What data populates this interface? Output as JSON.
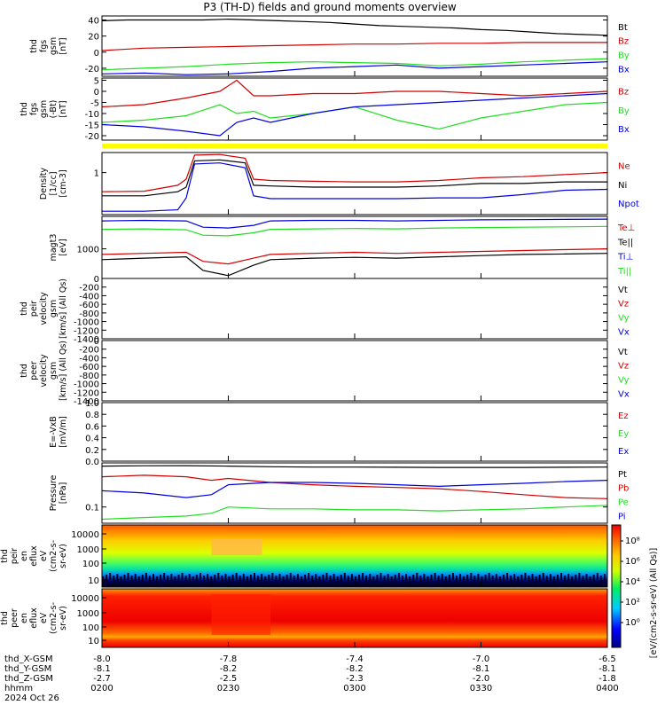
{
  "chart_data": {
    "type": "line",
    "title": "P3 (TH-D) fields and ground moments overview",
    "colors": {
      "black": "#000000",
      "red": "#d00000",
      "green": "#22dd22",
      "blue": "#0000dd",
      "yellow": "#ffff00"
    },
    "panels": [
      {
        "id": "fgs-gsm-1",
        "ylabel_lines": [
          "thd",
          "fgs",
          "gsm",
          "[nT]"
        ],
        "ylim": [
          -30,
          45
        ],
        "yticks": [
          40,
          20,
          0,
          -20
        ],
        "series": [
          {
            "name": "Bt",
            "color": "black",
            "x": [
              0,
              3,
              6,
              9,
              12,
              15,
              18,
              21,
              24,
              27,
              30,
              33,
              36,
              39,
              42,
              45,
              48,
              51,
              54,
              57,
              60
            ],
            "y": [
              39,
              40,
              40,
              40,
              40,
              41,
              40,
              39,
              38,
              37,
              35,
              33,
              32,
              31,
              30,
              28,
              27,
              25,
              23,
              22,
              21
            ]
          },
          {
            "name": "Bz",
            "color": "red",
            "x": [
              0,
              5,
              10,
              15,
              20,
              25,
              30,
              35,
              40,
              45,
              50,
              55,
              60
            ],
            "y": [
              2,
              5,
              6,
              7,
              8,
              9,
              10,
              10,
              11,
              11,
              12,
              12,
              12
            ]
          },
          {
            "name": "By",
            "color": "green",
            "x": [
              0,
              5,
              10,
              15,
              20,
              25,
              30,
              35,
              40,
              45,
              50,
              55,
              60
            ],
            "y": [
              -22,
              -20,
              -18,
              -15,
              -13,
              -12,
              -13,
              -14,
              -17,
              -15,
              -12,
              -10,
              -8
            ]
          },
          {
            "name": "Bx",
            "color": "blue",
            "x": [
              0,
              5,
              10,
              15,
              20,
              25,
              30,
              35,
              40,
              45,
              50,
              55,
              60
            ],
            "y": [
              -27,
              -26,
              -28,
              -27,
              -24,
              -20,
              -18,
              -16,
              -20,
              -18,
              -16,
              -14,
              -12
            ]
          }
        ]
      },
      {
        "id": "fgs-gsm-2",
        "ylabel_lines": [
          "thd",
          "fgs",
          "gsm",
          "(-Bt)",
          "[nT]"
        ],
        "ylim": [
          -22,
          6
        ],
        "yticks": [
          5,
          0,
          -5,
          -10,
          -15,
          -20
        ],
        "series": [
          {
            "name": "Bz",
            "color": "red",
            "x": [
              0,
              5,
              10,
              14,
              16,
              18,
              20,
              25,
              30,
              35,
              40,
              45,
              50,
              55,
              60
            ],
            "y": [
              -7,
              -6,
              -3,
              0,
              5,
              -2,
              -2,
              -1,
              -1,
              0,
              0,
              -1,
              -2,
              -1,
              0
            ]
          },
          {
            "name": "By",
            "color": "green",
            "x": [
              0,
              5,
              10,
              14,
              16,
              18,
              20,
              25,
              30,
              35,
              40,
              45,
              50,
              55,
              60
            ],
            "y": [
              -14,
              -13,
              -11,
              -6,
              -10,
              -9,
              -12,
              -10,
              -7,
              -13,
              -17,
              -12,
              -9,
              -6,
              -5
            ]
          },
          {
            "name": "Bx",
            "color": "blue",
            "x": [
              0,
              5,
              10,
              14,
              16,
              18,
              20,
              25,
              30,
              35,
              40,
              45,
              50,
              55,
              60
            ],
            "y": [
              -15,
              -16,
              -18,
              -20,
              -14,
              -12,
              -14,
              -10,
              -7,
              -6,
              -5,
              -4,
              -3,
              -2,
              -1
            ]
          }
        ]
      },
      {
        "id": "density",
        "ylabel_lines": [
          "Density",
          "[1/cc]",
          "[cm-3]"
        ],
        "ylim": [
          0.1,
          3
        ],
        "log": true,
        "yticks": [
          1
        ],
        "series": [
          {
            "name": "Ne",
            "color": "red",
            "x": [
              0,
              5,
              9,
              10,
              11,
              14,
              17,
              18,
              20,
              25,
              30,
              35,
              40,
              45,
              50,
              55,
              60
            ],
            "y": [
              0.35,
              0.36,
              0.5,
              0.7,
              2.6,
              2.7,
              2.2,
              0.7,
              0.65,
              0.62,
              0.6,
              0.6,
              0.65,
              0.75,
              0.8,
              0.9,
              1.0
            ]
          },
          {
            "name": "Ni",
            "color": "black",
            "x": [
              0,
              5,
              9,
              10,
              11,
              14,
              17,
              18,
              20,
              25,
              30,
              35,
              40,
              45,
              50,
              55,
              60
            ],
            "y": [
              0.28,
              0.28,
              0.35,
              0.45,
              1.9,
              2.0,
              1.7,
              0.5,
              0.48,
              0.45,
              0.45,
              0.45,
              0.48,
              0.55,
              0.55,
              0.6,
              0.6
            ]
          },
          {
            "name": "Npot",
            "color": "blue",
            "x": [
              0,
              5,
              9,
              10,
              11,
              14,
              17,
              18,
              20,
              25,
              30,
              35,
              40,
              45,
              50,
              55,
              60
            ],
            "y": [
              0.12,
              0.12,
              0.13,
              0.25,
              1.6,
              1.7,
              1.3,
              0.28,
              0.24,
              0.24,
              0.24,
              0.24,
              0.25,
              0.25,
              0.3,
              0.38,
              0.4
            ]
          }
        ]
      },
      {
        "id": "magt3",
        "ylabel_lines": [
          "magt3",
          "[eV]"
        ],
        "ylim": [
          150,
          8000
        ],
        "log": true,
        "yticks": [
          1000
        ],
        "series": [
          {
            "name": "Te⊥",
            "color": "red",
            "x": [
              0,
              5,
              10,
              12,
              15,
              18,
              20,
              25,
              30,
              35,
              40,
              45,
              50,
              55,
              60
            ],
            "y": [
              700,
              750,
              800,
              450,
              380,
              550,
              700,
              750,
              800,
              750,
              800,
              850,
              900,
              950,
              1000
            ]
          },
          {
            "name": "Te||",
            "color": "black",
            "x": [
              0,
              5,
              10,
              12,
              15,
              18,
              20,
              25,
              30,
              35,
              40,
              45,
              50,
              55,
              60
            ],
            "y": [
              500,
              550,
              600,
              250,
              180,
              350,
              500,
              550,
              580,
              550,
              600,
              650,
              700,
              720,
              750
            ]
          },
          {
            "name": "Ti⊥",
            "color": "blue",
            "x": [
              0,
              5,
              10,
              12,
              15,
              18,
              20,
              25,
              30,
              35,
              40,
              45,
              50,
              55,
              60
            ],
            "y": [
              6000,
              6200,
              6000,
              4000,
              3800,
              4500,
              6000,
              6200,
              6200,
              6000,
              6200,
              6400,
              6500,
              6600,
              6700
            ]
          },
          {
            "name": "Ti||",
            "color": "green",
            "x": [
              0,
              5,
              10,
              12,
              15,
              18,
              20,
              25,
              30,
              35,
              40,
              45,
              50,
              55,
              60
            ],
            "y": [
              3500,
              3600,
              3400,
              2400,
              2300,
              2800,
              3500,
              3600,
              3700,
              3600,
              3800,
              3900,
              4000,
              4100,
              4200
            ]
          }
        ]
      },
      {
        "id": "peir-velocity",
        "ylabel_lines": [
          "thd",
          "peir",
          "velocity",
          "gsm",
          "[km/s] (All Qs)"
        ],
        "ylim": [
          -1400,
          0
        ],
        "yticks": [
          0,
          -200,
          -400,
          -600,
          -800,
          -1000,
          -1200,
          -1400
        ],
        "series": [
          {
            "name": "Vt",
            "color": "black",
            "x": [],
            "y": []
          },
          {
            "name": "Vz",
            "color": "red",
            "x": [],
            "y": []
          },
          {
            "name": "Vy",
            "color": "green",
            "x": [],
            "y": []
          },
          {
            "name": "Vx",
            "color": "blue",
            "x": [],
            "y": []
          }
        ]
      },
      {
        "id": "peer-velocity",
        "ylabel_lines": [
          "thd",
          "peer",
          "velocity",
          "gsm",
          "[km/s] (All Qs)"
        ],
        "ylim": [
          -1400,
          0
        ],
        "yticks": [
          0,
          -200,
          -400,
          -600,
          -800,
          -1000,
          -1200,
          -1400
        ],
        "series": [
          {
            "name": "Vt",
            "color": "black",
            "x": [],
            "y": []
          },
          {
            "name": "Vz",
            "color": "red",
            "x": [],
            "y": []
          },
          {
            "name": "Vy",
            "color": "green",
            "x": [],
            "y": []
          },
          {
            "name": "Vx",
            "color": "blue",
            "x": [],
            "y": []
          }
        ]
      },
      {
        "id": "efield",
        "ylabel_lines": [
          "E=-VxB",
          "[mV/m]"
        ],
        "ylim": [
          0,
          1
        ],
        "yticks": [
          1.0,
          0.8,
          0.6,
          0.4,
          0.2,
          0.0
        ],
        "yticklabels": [
          "1.0",
          "0.8",
          "0.6",
          "0.4",
          "0.2",
          "0.0"
        ],
        "series": [
          {
            "name": "Ez",
            "color": "red",
            "x": [],
            "y": []
          },
          {
            "name": "Ey",
            "color": "green",
            "x": [],
            "y": []
          },
          {
            "name": "Ex",
            "color": "blue",
            "x": [],
            "y": []
          }
        ]
      },
      {
        "id": "pressure",
        "ylabel_lines": [
          "Pressure",
          "[nPa]"
        ],
        "ylim": [
          0.04,
          1.2
        ],
        "log": true,
        "yticks": [
          0.1
        ],
        "series": [
          {
            "name": "Pt",
            "color": "black",
            "x": [
              0,
              5,
              10,
              15,
              20,
              25,
              30,
              35,
              40,
              45,
              50,
              55,
              60
            ],
            "y": [
              1.0,
              1.02,
              1.03,
              1.0,
              0.97,
              0.95,
              0.95,
              0.94,
              0.93,
              0.93,
              0.93,
              0.94,
              0.95
            ]
          },
          {
            "name": "Pb",
            "color": "red",
            "x": [
              0,
              5,
              10,
              13,
              15,
              20,
              25,
              30,
              35,
              40,
              45,
              50,
              55,
              60
            ],
            "y": [
              0.55,
              0.6,
              0.55,
              0.45,
              0.5,
              0.4,
              0.35,
              0.32,
              0.3,
              0.28,
              0.24,
              0.2,
              0.17,
              0.16
            ]
          },
          {
            "name": "Pe",
            "color": "green",
            "x": [
              0,
              5,
              10,
              13,
              15,
              20,
              25,
              30,
              35,
              40,
              45,
              50,
              55,
              60
            ],
            "y": [
              0.05,
              0.055,
              0.06,
              0.07,
              0.1,
              0.09,
              0.09,
              0.085,
              0.085,
              0.08,
              0.085,
              0.09,
              0.1,
              0.11
            ]
          },
          {
            "name": "Pi",
            "color": "blue",
            "x": [
              0,
              5,
              10,
              13,
              15,
              20,
              25,
              30,
              35,
              40,
              45,
              50,
              55,
              60
            ],
            "y": [
              0.25,
              0.22,
              0.17,
              0.2,
              0.35,
              0.4,
              0.4,
              0.38,
              0.35,
              0.32,
              0.35,
              0.38,
              0.42,
              0.45
            ]
          }
        ]
      },
      {
        "id": "peir-eflux",
        "type": "heatmap",
        "ylabel_lines": [
          "thd",
          "peir",
          "en",
          "eflux",
          "eV",
          "(cm2-s-",
          "sr-eV)"
        ],
        "yticks": [
          "10000",
          "1000",
          "100",
          "10"
        ]
      },
      {
        "id": "peer-eflux",
        "type": "heatmap",
        "ylabel_lines": [
          "thd",
          "peer",
          "en",
          "eflux",
          "eV",
          "(cm2-s-",
          "sr-eV)"
        ],
        "yticks": [
          "10000",
          "1000",
          "100",
          "10"
        ]
      }
    ],
    "colorbar": {
      "label": "[eV/(cm2-s-sr-eV) (All Qs)]",
      "ticks": [
        "10⁸",
        "10⁶",
        "10⁴",
        "10²",
        "10⁰"
      ]
    },
    "xaxis": {
      "row_labels": [
        "thd_X-GSM",
        "thd_Y-GSM",
        "thd_Z-GSM",
        "hhmm",
        "2024 Oct 26"
      ],
      "ticks": [
        {
          "x": 0,
          "X": "-8.0",
          "Y": "-8.1",
          "Z": "-2.7",
          "hhmm": "0200"
        },
        {
          "x": 15,
          "X": "-7.8",
          "Y": "-8.2",
          "Z": "-2.5",
          "hhmm": "0230"
        },
        {
          "x": 30,
          "X": "-7.4",
          "Y": "-8.2",
          "Z": "-2.3",
          "hhmm": "0300"
        },
        {
          "x": 45,
          "X": "-7.0",
          "Y": "-8.1",
          "Z": "-2.0",
          "hhmm": "0330"
        },
        {
          "x": 60,
          "X": "-6.5",
          "Y": "-8.1",
          "Z": "-1.8",
          "hhmm": "0400"
        }
      ]
    }
  }
}
